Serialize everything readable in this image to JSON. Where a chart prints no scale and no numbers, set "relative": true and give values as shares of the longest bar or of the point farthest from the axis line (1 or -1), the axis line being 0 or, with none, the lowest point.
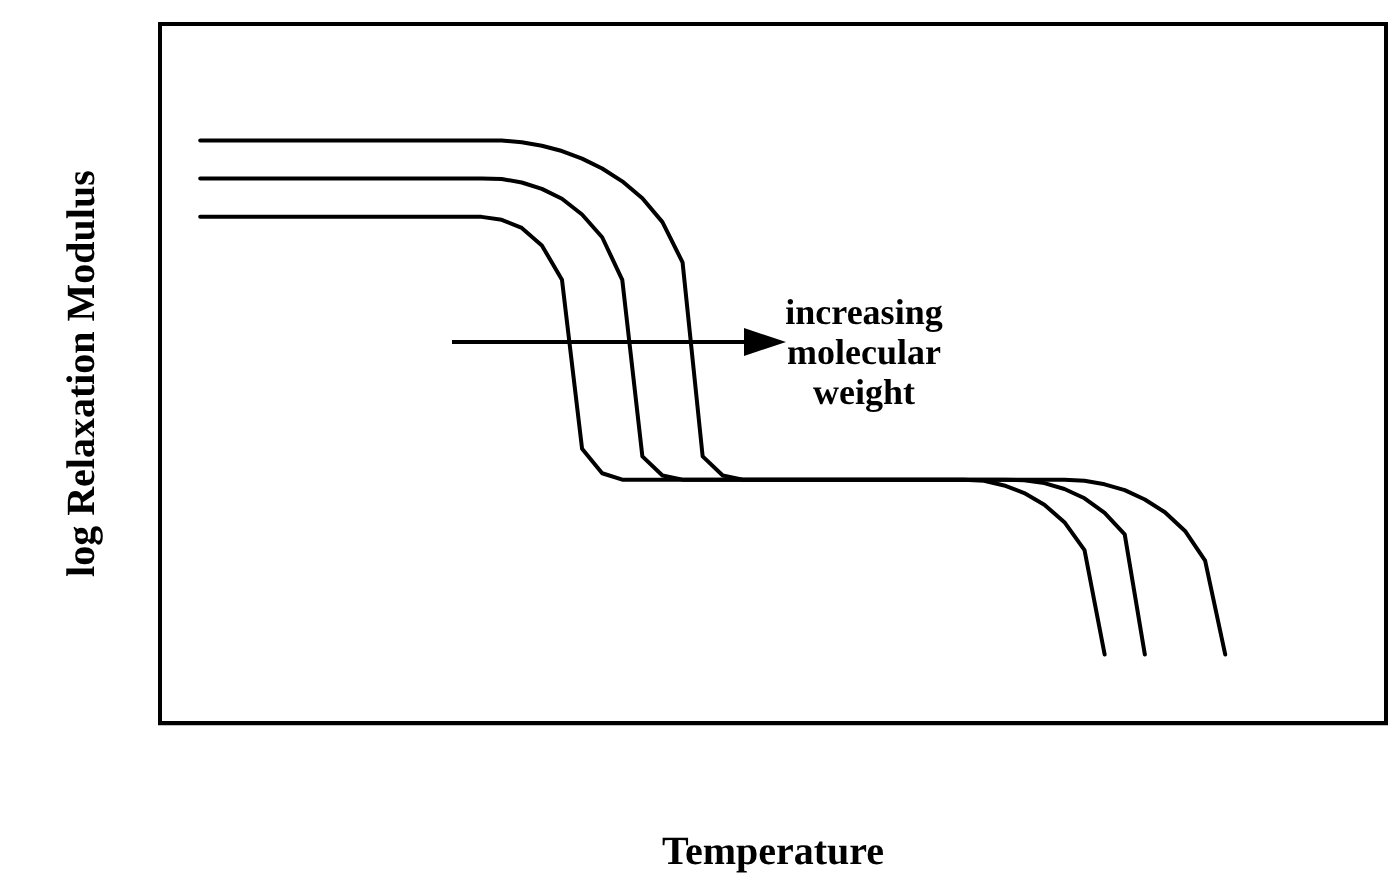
{
  "chart_data": {
    "type": "line",
    "relative": true,
    "xlabel": "Temperature",
    "ylabel": "log Relaxation Modulus",
    "annotations": [
      "increasing molecular weight"
    ],
    "legend": false,
    "grid": false,
    "marker": "none",
    "line_style": "solid",
    "categories": [
      null,
      null,
      null,
      null,
      null,
      null,
      null,
      null,
      null,
      null,
      null,
      null,
      null,
      null,
      null,
      null,
      null,
      null,
      null,
      null,
      null,
      null,
      null,
      null,
      null,
      null,
      null,
      null,
      null,
      null,
      null,
      null,
      null,
      null,
      null,
      null,
      null,
      null,
      null,
      null,
      null,
      null,
      null,
      null,
      null,
      null,
      null,
      null,
      null,
      null,
      null,
      null,
      null,
      null,
      null,
      null,
      null,
      null,
      null,
      null,
      null,
      null
    ],
    "series": [
      {
        "color": "#000000",
        "values": [
          null,
          null,
          1,
          1,
          1,
          1,
          1,
          1,
          1,
          1,
          1,
          1,
          1,
          1,
          1,
          1,
          1,
          1,
          0.997,
          0.991,
          0.982,
          0.969,
          0.952,
          0.93,
          0.901,
          0.86,
          0.791,
          0.458,
          0.425,
          0.418,
          0.418,
          0.418,
          0.418,
          0.418,
          0.418,
          0.418,
          0.418,
          0.418,
          0.418,
          0.418,
          0.418,
          0.418,
          0.418,
          0.418,
          0.418,
          0.418,
          0.416,
          0.41,
          0.4,
          0.384,
          0.362,
          0.33,
          0.279,
          0.118,
          null,
          null,
          null,
          null,
          null,
          null,
          null,
          null
        ]
      },
      {
        "color": "#000000",
        "values": [
          null,
          null,
          0.935,
          0.935,
          0.935,
          0.935,
          0.935,
          0.935,
          0.935,
          0.935,
          0.935,
          0.935,
          0.935,
          0.935,
          0.935,
          0.935,
          0.935,
          0.934,
          0.928,
          0.917,
          0.9,
          0.873,
          0.834,
          0.761,
          0.458,
          0.425,
          0.418,
          0.418,
          0.418,
          0.418,
          0.418,
          0.418,
          0.418,
          0.418,
          0.418,
          0.418,
          0.418,
          0.418,
          0.418,
          0.418,
          0.418,
          0.418,
          0.418,
          0.417,
          0.412,
          0.402,
          0.386,
          0.361,
          0.324,
          0.118,
          null,
          null,
          null,
          null,
          null,
          null,
          null,
          null,
          null,
          null,
          null,
          null
        ]
      },
      {
        "color": "#000000",
        "values": [
          null,
          null,
          0.869,
          0.869,
          0.869,
          0.869,
          0.869,
          0.869,
          0.869,
          0.869,
          0.869,
          0.869,
          0.869,
          0.869,
          0.869,
          0.869,
          0.869,
          0.864,
          0.85,
          0.82,
          0.761,
          0.471,
          0.429,
          0.418,
          0.418,
          0.418,
          0.418,
          0.418,
          0.418,
          0.418,
          0.418,
          0.418,
          0.418,
          0.418,
          0.418,
          0.418,
          0.418,
          0.418,
          0.418,
          0.418,
          0.418,
          0.416,
          0.408,
          0.395,
          0.375,
          0.345,
          0.297,
          0.118,
          null,
          null,
          null,
          null,
          null,
          null,
          null,
          null,
          null,
          null,
          null,
          null,
          null,
          null
        ]
      }
    ]
  }
}
